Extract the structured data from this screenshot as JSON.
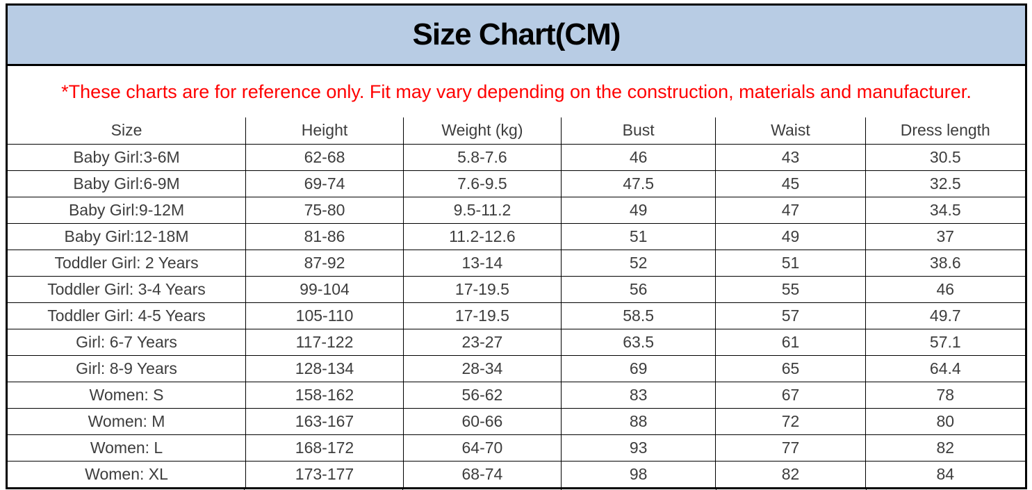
{
  "page": {
    "title": "Size Chart(CM)",
    "disclaimer": "*These charts are for reference only. Fit may vary depending on the construction, materials and manufacturer."
  },
  "colors": {
    "title_bar_bg": "#b8cce4",
    "title_text": "#000000",
    "disclaimer_text": "#ff0000",
    "table_text": "#3d3d3d",
    "border": "#000000"
  },
  "chart_data": {
    "type": "table",
    "title": "Size Chart(CM)",
    "columns": [
      "Size",
      "Height",
      "Weight (kg)",
      "Bust",
      "Waist",
      "Dress length"
    ],
    "rows": [
      [
        "Baby Girl:3-6M",
        "62-68",
        "5.8-7.6",
        "46",
        "43",
        "30.5"
      ],
      [
        "Baby Girl:6-9M",
        "69-74",
        "7.6-9.5",
        "47.5",
        "45",
        "32.5"
      ],
      [
        "Baby Girl:9-12M",
        "75-80",
        "9.5-11.2",
        "49",
        "47",
        "34.5"
      ],
      [
        "Baby Girl:12-18M",
        "81-86",
        "11.2-12.6",
        "51",
        "49",
        "37"
      ],
      [
        "Toddler Girl: 2 Years",
        "87-92",
        "13-14",
        "52",
        "51",
        "38.6"
      ],
      [
        "Toddler Girl: 3-4 Years",
        "99-104",
        "17-19.5",
        "56",
        "55",
        "46"
      ],
      [
        "Toddler Girl: 4-5 Years",
        "105-110",
        "17-19.5",
        "58.5",
        "57",
        "49.7"
      ],
      [
        "Girl: 6-7 Years",
        "117-122",
        "23-27",
        "63.5",
        "61",
        "57.1"
      ],
      [
        "Girl: 8-9 Years",
        "128-134",
        "28-34",
        "69",
        "65",
        "64.4"
      ],
      [
        "Women: S",
        "158-162",
        "56-62",
        "83",
        "67",
        "78"
      ],
      [
        "Women: M",
        "163-167",
        "60-66",
        "88",
        "72",
        "80"
      ],
      [
        "Women: L",
        "168-172",
        "64-70",
        "93",
        "77",
        "82"
      ],
      [
        "Women: XL",
        "173-177",
        "68-74",
        "98",
        "82",
        "84"
      ]
    ]
  }
}
